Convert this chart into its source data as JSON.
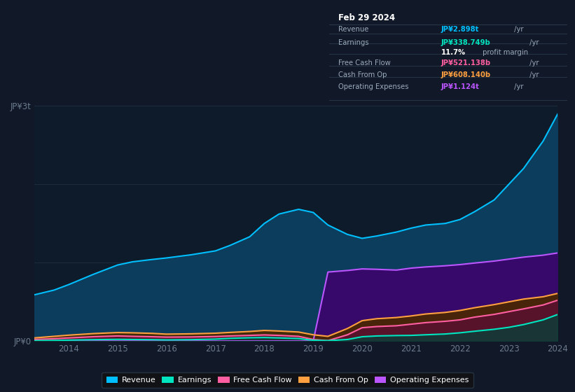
{
  "bg_color": "#111827",
  "plot_bg_color": "#0d1b2a",
  "years": [
    2013.3,
    2013.7,
    2014,
    2014.5,
    2015,
    2015.3,
    2015.7,
    2016,
    2016.5,
    2017,
    2017.3,
    2017.7,
    2018,
    2018.3,
    2018.7,
    2019,
    2019.3,
    2019.7,
    2020,
    2020.3,
    2020.7,
    2021,
    2021.3,
    2021.7,
    2022,
    2022.3,
    2022.7,
    2023,
    2023.3,
    2023.7,
    2024
  ],
  "revenue": [
    590,
    650,
    720,
    850,
    970,
    1010,
    1040,
    1060,
    1100,
    1150,
    1220,
    1330,
    1500,
    1620,
    1680,
    1640,
    1480,
    1360,
    1310,
    1340,
    1390,
    1440,
    1480,
    1500,
    1550,
    1650,
    1800,
    2000,
    2200,
    2550,
    2898
  ],
  "earnings": [
    5,
    8,
    12,
    18,
    22,
    20,
    18,
    15,
    18,
    25,
    35,
    42,
    45,
    40,
    32,
    10,
    5,
    20,
    55,
    65,
    70,
    72,
    80,
    90,
    105,
    125,
    150,
    175,
    210,
    270,
    339
  ],
  "free_cash_flow": [
    20,
    30,
    40,
    55,
    65,
    60,
    55,
    50,
    52,
    58,
    65,
    72,
    78,
    72,
    60,
    20,
    5,
    80,
    170,
    185,
    195,
    215,
    235,
    252,
    270,
    305,
    340,
    375,
    410,
    460,
    521
  ],
  "cash_from_op": [
    40,
    60,
    75,
    95,
    108,
    105,
    98,
    88,
    92,
    100,
    110,
    122,
    135,
    128,
    115,
    80,
    60,
    160,
    260,
    285,
    300,
    320,
    345,
    365,
    390,
    425,
    465,
    500,
    535,
    565,
    608
  ],
  "op_expenses": [
    0,
    0,
    0,
    0,
    0,
    0,
    0,
    0,
    0,
    0,
    0,
    0,
    0,
    0,
    0,
    0,
    880,
    900,
    920,
    915,
    905,
    930,
    945,
    960,
    975,
    995,
    1020,
    1045,
    1070,
    1095,
    1124
  ],
  "revenue_color": "#00bfff",
  "revenue_fill": "#0d3d5c",
  "earnings_color": "#00e5c0",
  "earnings_fill": "#00443a",
  "free_cash_color": "#ff5fa0",
  "free_cash_fill": "#5a1030",
  "cash_from_op_color": "#ffa040",
  "cash_from_op_fill": "#4a2800",
  "op_expenses_color": "#bb55ff",
  "op_expenses_fill": "#36096b",
  "grid_color": "#1e2d3d",
  "tick_color": "#6b7a8d",
  "xtick_positions": [
    2014,
    2015,
    2016,
    2017,
    2018,
    2019,
    2020,
    2021,
    2022,
    2023,
    2024
  ],
  "xtick_labels": [
    "2014",
    "2015",
    "2016",
    "2017",
    "2018",
    "2019",
    "2020",
    "2021",
    "2022",
    "2023",
    "2024"
  ],
  "ylim_max": 3000,
  "xmin": 2013.3,
  "xmax": 2024,
  "info_box": {
    "date": "Feb 29 2024",
    "rows": [
      {
        "label": "Revenue",
        "value": "JP¥2.898t",
        "unit": " /yr",
        "color": "#00bfff"
      },
      {
        "label": "Earnings",
        "value": "JP¥338.749b",
        "unit": " /yr",
        "color": "#00e5c0"
      },
      {
        "label": "",
        "value": "11.7%",
        "unit": " profit margin",
        "color": "#ffffff"
      },
      {
        "label": "Free Cash Flow",
        "value": "JP¥521.138b",
        "unit": " /yr",
        "color": "#ff5fa0"
      },
      {
        "label": "Cash From Op",
        "value": "JP¥608.140b",
        "unit": " /yr",
        "color": "#ffa040"
      },
      {
        "label": "Operating Expenses",
        "value": "JP¥1.124t",
        "unit": " /yr",
        "color": "#bb55ff"
      }
    ]
  },
  "legend_items": [
    {
      "label": "Revenue",
      "color": "#00bfff"
    },
    {
      "label": "Earnings",
      "color": "#00e5c0"
    },
    {
      "label": "Free Cash Flow",
      "color": "#ff5fa0"
    },
    {
      "label": "Cash From Op",
      "color": "#ffa040"
    },
    {
      "label": "Operating Expenses",
      "color": "#bb55ff"
    }
  ]
}
